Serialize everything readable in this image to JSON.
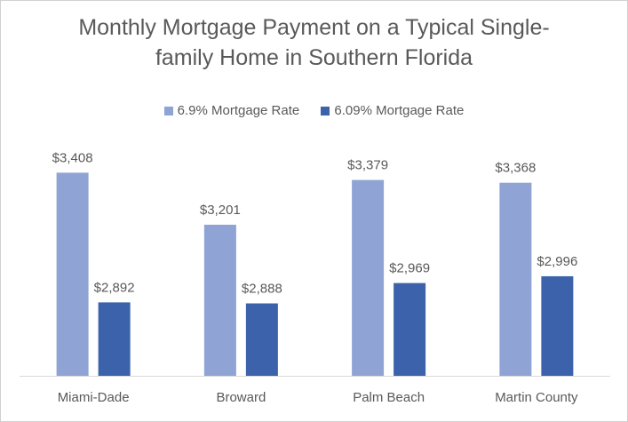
{
  "chart_data": {
    "type": "bar",
    "title_line1": "Monthly Mortgage Payment on a Typical Single-",
    "title_line2": "family Home in Southern Florida",
    "categories": [
      "Miami-Dade",
      "Broward",
      "Palm Beach",
      "Martin County"
    ],
    "series": [
      {
        "name": "6.9% Mortgage Rate",
        "values": [
          3408,
          3201,
          3379,
          3368
        ],
        "color": "#8FA3D4",
        "labels": [
          "$3,408",
          "$3,201",
          "$3,379",
          "$3,368"
        ]
      },
      {
        "name": "6.09% Mortgage Rate",
        "values": [
          2892,
          2888,
          2969,
          2996
        ],
        "color": "#3B62AA",
        "labels": [
          "$2,892",
          "$2,888",
          "$2,969",
          "$2,996"
        ]
      }
    ],
    "ylim": [
      2600,
      3500
    ],
    "grid": false,
    "legend_position": "top"
  }
}
